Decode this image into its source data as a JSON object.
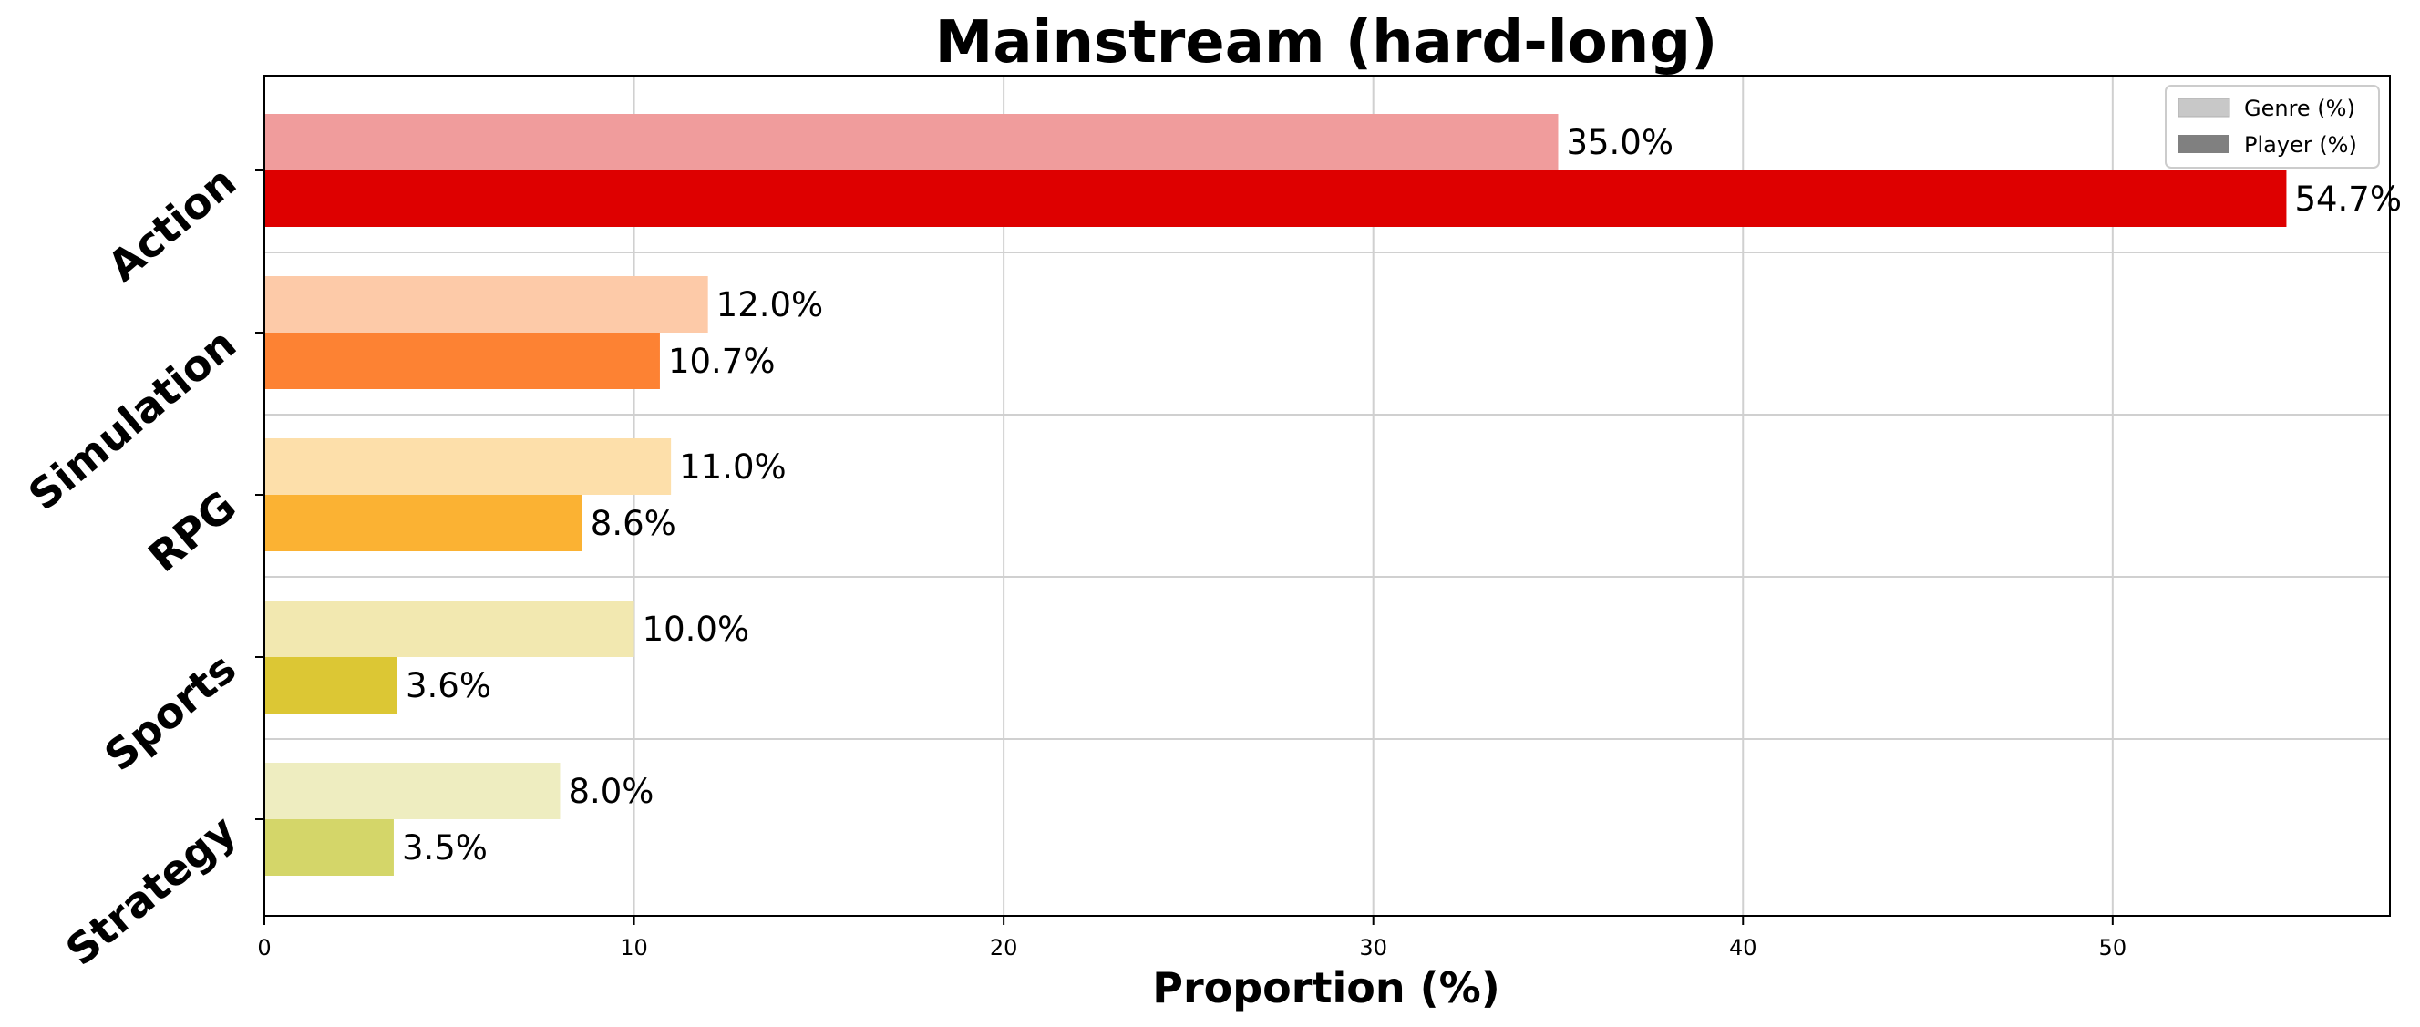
{
  "chart_data": {
    "type": "bar",
    "orientation": "horizontal",
    "title": "Mainstream (hard-long)",
    "xlabel": "Proportion (%)",
    "ylabel": "",
    "xlim": [
      0,
      57.5
    ],
    "xticks": [
      "0",
      "10",
      "20",
      "30",
      "40",
      "50"
    ],
    "xtick_values": [
      0,
      10,
      20,
      30,
      40,
      50
    ],
    "grid": true,
    "legend_position": "top-right",
    "categories": [
      "Action",
      "Simulation",
      "RPG",
      "Sports",
      "Strategy"
    ],
    "series": [
      {
        "name": "Genre (%)",
        "values": [
          35.0,
          12.0,
          11.0,
          10.0,
          8.0
        ],
        "labels": [
          "35.0%",
          "12.0%",
          "11.0%",
          "10.0%",
          "8.0%"
        ],
        "colors": [
          "#f09c9c",
          "#fdcaa8",
          "#fddfaa",
          "#f2e8b0",
          "#eeedc0"
        ],
        "legend_color": "#c8c8c8"
      },
      {
        "name": "Player (%)",
        "values": [
          54.7,
          10.7,
          8.6,
          3.6,
          3.5
        ],
        "labels": [
          "54.7%",
          "10.7%",
          "8.6%",
          "3.6%",
          "3.5%"
        ],
        "colors": [
          "#de0000",
          "#fd8233",
          "#fbb233",
          "#dcc734",
          "#d4d669"
        ],
        "legend_color": "#808080"
      }
    ]
  }
}
